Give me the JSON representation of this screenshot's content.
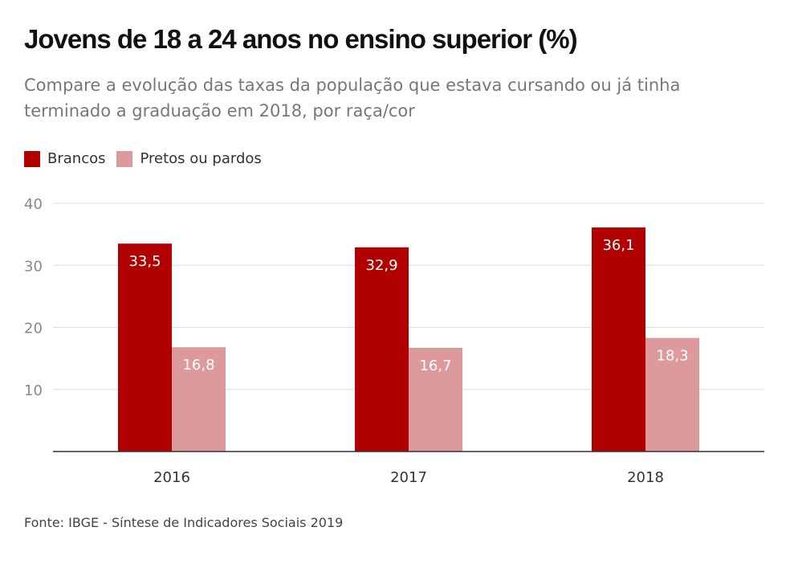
{
  "header": {
    "title": "Jovens de 18 a 24 anos no ensino superior (%)",
    "subtitle": "Compare a evolução das taxas da população que estava cursando ou já tinha terminado a graduação em 2018, por raça/cor"
  },
  "legend": {
    "items": [
      {
        "label": "Brancos",
        "color": "#b00000"
      },
      {
        "label": "Pretos ou pardos",
        "color": "#dc9a9c"
      }
    ]
  },
  "footer": {
    "source": "Fonte: IBGE - Síntese de Indicadores Sociais 2019"
  },
  "chart_data": {
    "type": "bar",
    "title": "Jovens de 18 a 24 anos no ensino superior (%)",
    "categories": [
      "2016",
      "2017",
      "2018"
    ],
    "series": [
      {
        "name": "Brancos",
        "values": [
          33.5,
          32.9,
          36.1
        ],
        "labels": [
          "33,5",
          "32,9",
          "36,1"
        ],
        "color": "#b00000"
      },
      {
        "name": "Pretos ou pardos",
        "values": [
          16.8,
          16.7,
          18.3
        ],
        "labels": [
          "16,8",
          "16,7",
          "18,3"
        ],
        "color": "#dc9a9c"
      }
    ],
    "yticks": [
      10,
      20,
      30,
      40
    ],
    "ylim": [
      0,
      40
    ],
    "grid": true,
    "legend_position": "top-left"
  }
}
